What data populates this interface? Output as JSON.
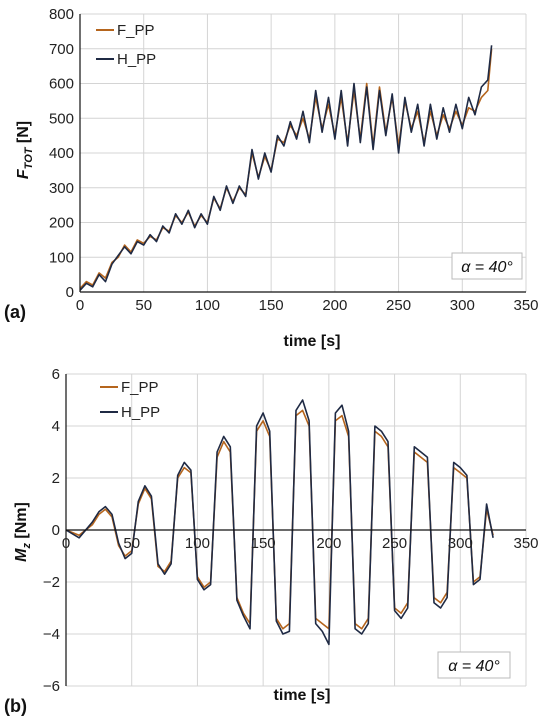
{
  "chart_data": [
    {
      "type": "line",
      "panel_label": "(a)",
      "xlabel": "time [s]",
      "ylabel": "F",
      "ylabel_sub": "TOT",
      "ylabel_unit": " [N]",
      "xlim": [
        0,
        350
      ],
      "ylim": [
        0,
        800
      ],
      "x_ticks": [
        0,
        50,
        100,
        150,
        200,
        250,
        300,
        350
      ],
      "y_ticks": [
        0,
        100,
        200,
        300,
        400,
        500,
        600,
        700,
        800
      ],
      "grid": true,
      "legend": "top-left",
      "annotation": "α = 40°",
      "series": [
        {
          "name": "F_PP",
          "color": "#b5651d",
          "x": [
            0,
            5,
            10,
            15,
            20,
            25,
            30,
            35,
            40,
            45,
            50,
            55,
            60,
            65,
            70,
            75,
            80,
            85,
            90,
            95,
            100,
            105,
            110,
            115,
            120,
            125,
            130,
            135,
            140,
            145,
            150,
            155,
            160,
            165,
            170,
            175,
            180,
            185,
            190,
            195,
            200,
            205,
            210,
            215,
            220,
            225,
            230,
            235,
            240,
            245,
            250,
            255,
            260,
            265,
            270,
            275,
            280,
            285,
            290,
            295,
            300,
            305,
            310,
            315,
            320,
            323
          ],
          "y": [
            10,
            30,
            20,
            55,
            40,
            85,
            100,
            135,
            115,
            150,
            140,
            160,
            150,
            185,
            175,
            220,
            200,
            230,
            190,
            220,
            200,
            270,
            240,
            300,
            260,
            300,
            280,
            400,
            330,
            390,
            350,
            440,
            430,
            480,
            450,
            500,
            440,
            560,
            470,
            540,
            450,
            560,
            430,
            580,
            440,
            600,
            420,
            590,
            460,
            560,
            420,
            550,
            470,
            520,
            430,
            520,
            450,
            510,
            470,
            520,
            480,
            530,
            520,
            560,
            580,
            700
          ]
        },
        {
          "name": "H_PP",
          "color": "#1f2a44",
          "x": [
            0,
            5,
            10,
            15,
            20,
            25,
            30,
            35,
            40,
            45,
            50,
            55,
            60,
            65,
            70,
            75,
            80,
            85,
            90,
            95,
            100,
            105,
            110,
            115,
            120,
            125,
            130,
            135,
            140,
            145,
            150,
            155,
            160,
            165,
            170,
            175,
            180,
            185,
            190,
            195,
            200,
            205,
            210,
            215,
            220,
            225,
            230,
            235,
            240,
            245,
            250,
            255,
            260,
            265,
            270,
            275,
            280,
            285,
            290,
            295,
            300,
            305,
            310,
            315,
            320,
            323
          ],
          "y": [
            5,
            25,
            15,
            50,
            30,
            80,
            105,
            130,
            110,
            145,
            135,
            165,
            145,
            190,
            170,
            225,
            195,
            235,
            185,
            225,
            195,
            275,
            235,
            305,
            255,
            305,
            275,
            410,
            325,
            400,
            345,
            450,
            420,
            490,
            440,
            520,
            430,
            580,
            460,
            560,
            440,
            580,
            420,
            600,
            430,
            590,
            410,
            580,
            450,
            570,
            400,
            560,
            460,
            540,
            420,
            540,
            440,
            530,
            460,
            540,
            470,
            560,
            510,
            590,
            610,
            710
          ]
        }
      ]
    },
    {
      "type": "line",
      "panel_label": "(b)",
      "xlabel": "time [s]",
      "ylabel": "M",
      "ylabel_sub": "z",
      "ylabel_unit": " [Nm]",
      "xlim": [
        0,
        350
      ],
      "ylim": [
        -6,
        6
      ],
      "x_ticks": [
        0,
        50,
        100,
        150,
        200,
        250,
        300,
        350
      ],
      "y_ticks": [
        -6,
        -4,
        -2,
        0,
        2,
        4,
        6
      ],
      "grid": true,
      "legend": "top-left",
      "annotation": "α = 40°",
      "series": [
        {
          "name": "F_PP",
          "color": "#b5651d",
          "x": [
            0,
            10,
            20,
            25,
            30,
            35,
            40,
            45,
            50,
            55,
            60,
            65,
            70,
            75,
            80,
            85,
            90,
            95,
            100,
            105,
            110,
            115,
            120,
            125,
            130,
            135,
            140,
            145,
            150,
            155,
            160,
            165,
            170,
            175,
            180,
            185,
            190,
            195,
            200,
            205,
            210,
            215,
            220,
            225,
            230,
            235,
            240,
            245,
            250,
            255,
            260,
            265,
            270,
            275,
            280,
            285,
            290,
            295,
            300,
            305,
            310,
            315,
            320,
            325
          ],
          "y": [
            0,
            -0.2,
            0.2,
            0.6,
            0.8,
            0.5,
            -0.6,
            -1.0,
            -0.8,
            1.0,
            1.6,
            1.2,
            -1.4,
            -1.6,
            -1.2,
            2.0,
            2.4,
            2.2,
            -1.8,
            -2.2,
            -2.0,
            2.8,
            3.4,
            3.0,
            -2.6,
            -3.2,
            -3.6,
            3.8,
            4.2,
            3.6,
            -3.4,
            -3.8,
            -3.6,
            4.4,
            4.6,
            4.0,
            -3.4,
            -3.6,
            -3.8,
            4.2,
            4.4,
            3.6,
            -3.6,
            -3.8,
            -3.4,
            3.8,
            3.6,
            3.2,
            -3.0,
            -3.2,
            -2.8,
            3.0,
            2.8,
            2.6,
            -2.6,
            -2.8,
            -2.4,
            2.4,
            2.2,
            2.0,
            -2.0,
            -1.8,
            0.8,
            -0.2
          ]
        },
        {
          "name": "H_PP",
          "color": "#1f2a44",
          "x": [
            0,
            10,
            20,
            25,
            30,
            35,
            40,
            45,
            50,
            55,
            60,
            65,
            70,
            75,
            80,
            85,
            90,
            95,
            100,
            105,
            110,
            115,
            120,
            125,
            130,
            135,
            140,
            145,
            150,
            155,
            160,
            165,
            170,
            175,
            180,
            185,
            190,
            195,
            200,
            205,
            210,
            215,
            220,
            225,
            230,
            235,
            240,
            245,
            250,
            255,
            260,
            265,
            270,
            275,
            280,
            285,
            290,
            295,
            300,
            305,
            310,
            315,
            320,
            325
          ],
          "y": [
            0,
            -0.3,
            0.3,
            0.7,
            0.9,
            0.6,
            -0.5,
            -1.1,
            -0.9,
            1.1,
            1.7,
            1.3,
            -1.3,
            -1.7,
            -1.3,
            2.1,
            2.6,
            2.3,
            -1.9,
            -2.3,
            -2.1,
            3.0,
            3.6,
            3.2,
            -2.7,
            -3.3,
            -3.8,
            4.0,
            4.5,
            3.8,
            -3.5,
            -4.0,
            -3.9,
            4.6,
            5.0,
            4.2,
            -3.6,
            -3.9,
            -4.4,
            4.5,
            4.8,
            3.8,
            -3.8,
            -4.0,
            -3.6,
            4.0,
            3.8,
            3.4,
            -3.1,
            -3.4,
            -3.0,
            3.2,
            3.0,
            2.8,
            -2.8,
            -3.0,
            -2.6,
            2.6,
            2.4,
            2.1,
            -2.1,
            -1.9,
            1.0,
            -0.3
          ]
        }
      ]
    }
  ]
}
